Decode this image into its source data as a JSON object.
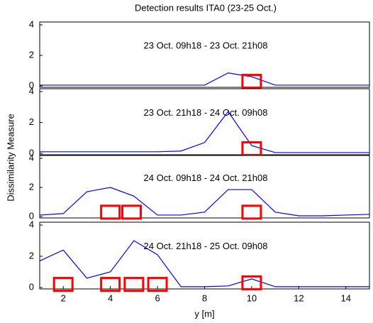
{
  "title": "Detection results ITA0 (23-25 Oct.)",
  "y_label": "Dissimilarity Measure",
  "chart_data": [
    {
      "type": "line",
      "annotation": "23 Oct. 09h18 - 23 Oct. 21h08",
      "x": [
        1,
        2,
        3,
        4,
        5,
        6,
        7,
        8,
        9,
        10,
        11,
        12,
        13,
        14,
        15
      ],
      "xlim": [
        1,
        15
      ],
      "ylim": [
        0,
        4
      ],
      "yticks": [
        0,
        2,
        4
      ],
      "color": "#0000ff",
      "values": [
        0.05,
        0.05,
        0.05,
        0.05,
        0.05,
        0.05,
        0.05,
        0.05,
        0.85,
        0.6,
        0.05,
        0.05,
        0.05,
        0.05,
        0.05
      ],
      "detections": {
        "color": "#ff0000",
        "x": [
          10
        ],
        "y": [
          0.3
        ]
      }
    },
    {
      "type": "line",
      "annotation": "23 Oct. 21h18 - 24 Oct. 09h08",
      "x": [
        1,
        2,
        3,
        4,
        5,
        6,
        7,
        8,
        9,
        10,
        11,
        12,
        13,
        14,
        15
      ],
      "xlim": [
        1,
        15
      ],
      "ylim": [
        0,
        4
      ],
      "yticks": [
        0,
        2,
        4
      ],
      "color": "#0000ff",
      "values": [
        0.1,
        0.1,
        0.1,
        0.1,
        0.1,
        0.1,
        0.15,
        0.7,
        2.7,
        0.5,
        0.05,
        0.05,
        0.05,
        0.05,
        0.05
      ],
      "detections": {
        "color": "#ff0000",
        "x": [
          10
        ],
        "y": [
          0.3
        ]
      }
    },
    {
      "type": "line",
      "annotation": "24 Oct. 09h18 - 24 Oct. 21h08",
      "x": [
        1,
        2,
        3,
        4,
        5,
        6,
        7,
        8,
        9,
        10,
        11,
        12,
        13,
        14,
        15
      ],
      "xlim": [
        1,
        15
      ],
      "ylim": [
        0,
        4
      ],
      "yticks": [
        0,
        2,
        4
      ],
      "color": "#0000ff",
      "values": [
        0.1,
        0.2,
        1.7,
        2.0,
        1.4,
        0.1,
        0.1,
        0.3,
        1.85,
        1.85,
        0.3,
        0.05,
        0.05,
        0.1,
        0.15
      ],
      "detections": {
        "color": "#ff0000",
        "x": [
          4,
          4.9,
          10
        ],
        "y": [
          0.3,
          0.3,
          0.3
        ]
      }
    },
    {
      "type": "line",
      "annotation": "24 Oct. 21h18 - 25 Oct. 09h08",
      "x": [
        1,
        2,
        3,
        4,
        5,
        6,
        7,
        8,
        9,
        10,
        11,
        12,
        13,
        14,
        15
      ],
      "xlim": [
        1,
        15
      ],
      "ylim": [
        0,
        4
      ],
      "yticks": [
        0,
        2,
        4
      ],
      "xticks": [
        2,
        4,
        6,
        8,
        10,
        12,
        14
      ],
      "x_label": "y [m]",
      "color": "#0000ff",
      "values": [
        1.7,
        2.4,
        0.6,
        1.0,
        3.0,
        2.1,
        0.05,
        0.05,
        0.1,
        0.55,
        0.05,
        0.05,
        0.05,
        0.05,
        0.05
      ],
      "detections": {
        "color": "#ff0000",
        "x": [
          2,
          4,
          5,
          6,
          10
        ],
        "y": [
          0.2,
          0.2,
          0.2,
          0.2,
          0.3
        ]
      }
    }
  ]
}
